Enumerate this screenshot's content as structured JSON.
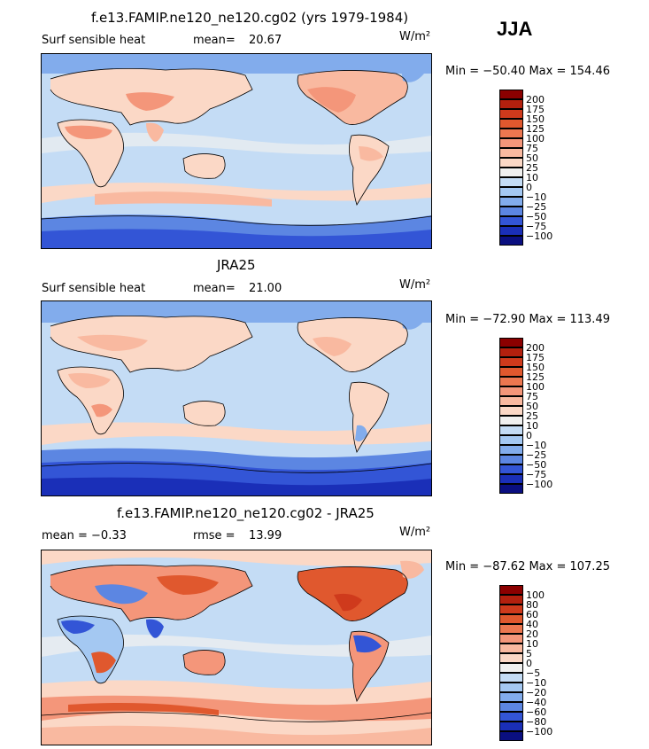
{
  "season": "JJA",
  "panels": [
    {
      "title": "f.e13.FAMIP.ne120_ne120.cg02 (yrs 1979-1984)",
      "left_label": "Surf sensible heat",
      "stat_label": "mean=",
      "stat_value": "20.67",
      "units": "W/m²",
      "minmax": "Min = −50.40 Max = 154.46",
      "colorbar": [
        "200",
        "175",
        "150",
        "125",
        "100",
        "75",
        "50",
        "25",
        "10",
        "0",
        "−10",
        "−25",
        "−50",
        "−75",
        "−100"
      ]
    },
    {
      "title": "JRA25",
      "left_label": "Surf sensible heat",
      "stat_label": "mean=",
      "stat_value": "21.00",
      "units": "W/m²",
      "minmax": "Min = −72.90 Max = 113.49",
      "colorbar": [
        "200",
        "175",
        "150",
        "125",
        "100",
        "75",
        "50",
        "25",
        "10",
        "0",
        "−10",
        "−25",
        "−50",
        "−75",
        "−100"
      ]
    },
    {
      "title": "f.e13.FAMIP.ne120_ne120.cg02 - JRA25",
      "left_label": "mean =  −0.33",
      "stat_label": "rmse =",
      "stat_value": "13.99",
      "units": "W/m²",
      "minmax": "Min = −87.62 Max = 107.25",
      "colorbar": [
        "100",
        "80",
        "60",
        "40",
        "20",
        "10",
        "5",
        "0",
        "−5",
        "−10",
        "−20",
        "−40",
        "−60",
        "−80",
        "−100"
      ]
    }
  ],
  "colors": {
    "scale": [
      "#8b0000",
      "#b3200e",
      "#cf3a1c",
      "#e0582e",
      "#ec7750",
      "#f4967a",
      "#f9b9a0",
      "#fbd8c6",
      "#f0f0ef",
      "#c4dcf5",
      "#a4c8f2",
      "#82acec",
      "#5c86e2",
      "#3355d6",
      "#1a2fb8",
      "#0a0f80"
    ]
  }
}
